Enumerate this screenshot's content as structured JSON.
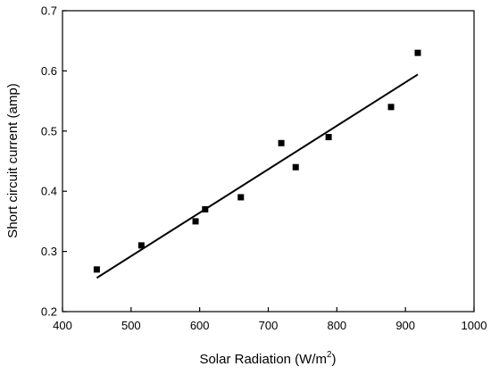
{
  "chart_data": {
    "type": "scatter",
    "title": "",
    "xlabel": "Solar Radiation (W/m",
    "xlabel_superscript": "2",
    "xlabel_suffix": ")",
    "ylabel": "Short circuit current (amp)",
    "xlim": [
      400,
      1000
    ],
    "ylim": [
      0.2,
      0.7
    ],
    "x_ticks": [
      400,
      500,
      600,
      700,
      800,
      900,
      1000
    ],
    "y_ticks": [
      0.2,
      0.3,
      0.4,
      0.5,
      0.6,
      0.7
    ],
    "x_tick_labels": [
      "400",
      "500",
      "600",
      "700",
      "800",
      "900",
      "1000"
    ],
    "y_tick_labels": [
      "0.2",
      "0.3",
      "0.4",
      "0.5",
      "0.6",
      "0.7"
    ],
    "grid": false,
    "legend": "none",
    "marker": "square",
    "marker_color": "#000000",
    "series": [
      {
        "points": [
          {
            "x": 450,
            "y": 0.27
          },
          {
            "x": 515,
            "y": 0.31
          },
          {
            "x": 594,
            "y": 0.35
          },
          {
            "x": 608,
            "y": 0.37
          },
          {
            "x": 660,
            "y": 0.39
          },
          {
            "x": 719,
            "y": 0.48
          },
          {
            "x": 740,
            "y": 0.44
          },
          {
            "x": 788,
            "y": 0.49
          },
          {
            "x": 879,
            "y": 0.54
          },
          {
            "x": 918,
            "y": 0.63
          }
        ]
      }
    ],
    "fit_line": {
      "x": [
        450,
        918
      ],
      "y": [
        0.256,
        0.594
      ],
      "color": "#000000"
    }
  }
}
